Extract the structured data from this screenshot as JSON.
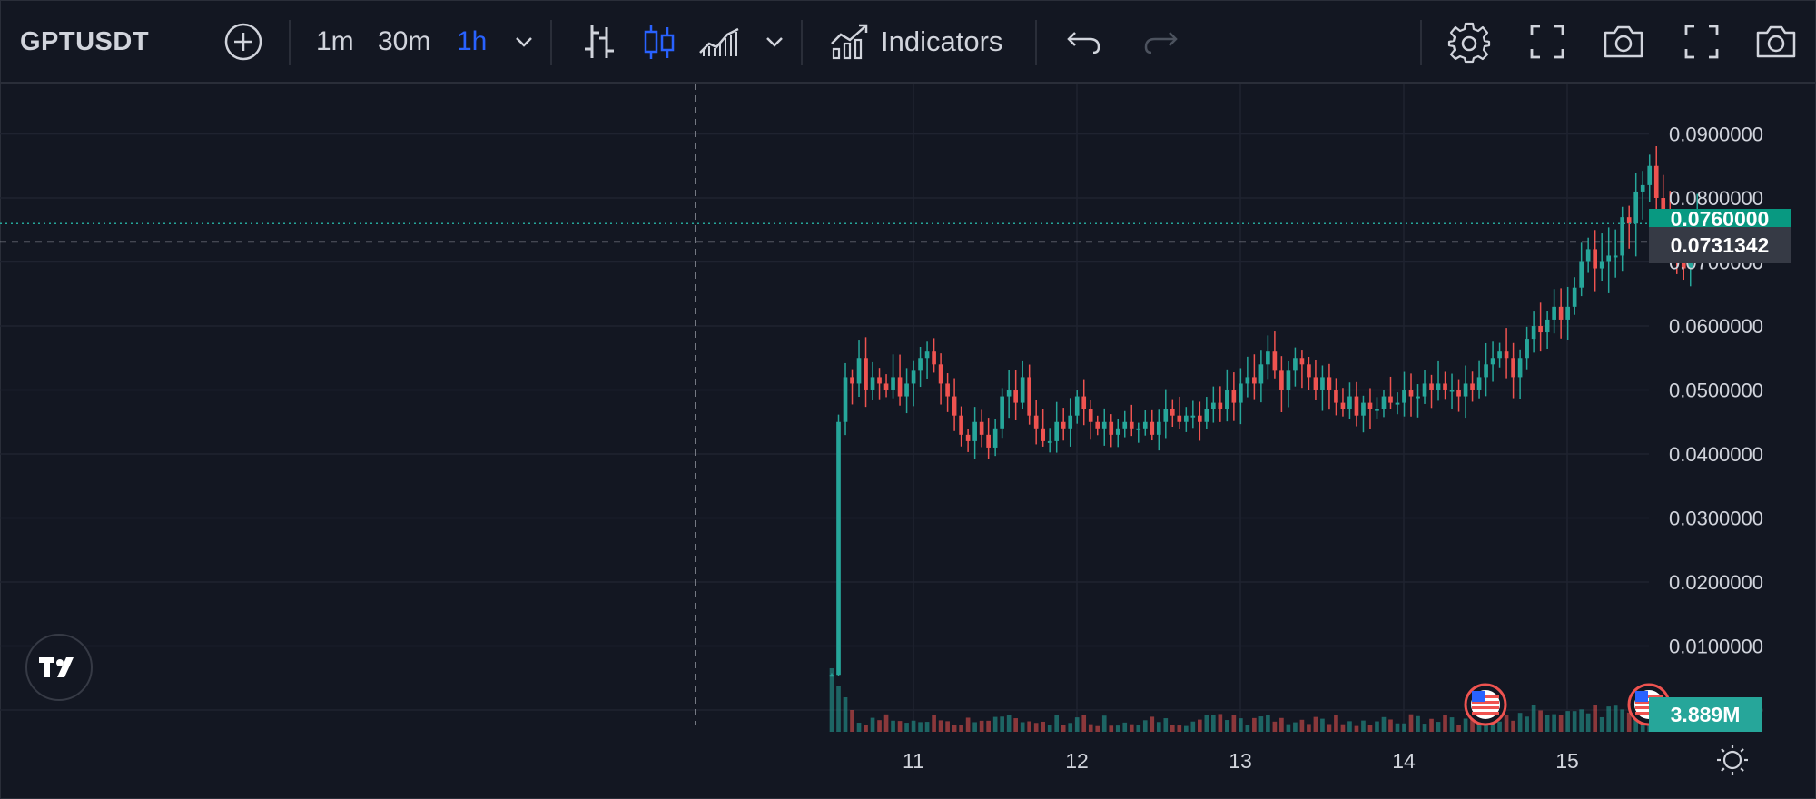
{
  "toolbar": {
    "symbol": "GPTUSDT",
    "add_icon": "plus-circle-icon",
    "intervals": [
      "1m",
      "30m",
      "1h"
    ],
    "active_interval": "1h",
    "indicators_label": "Indicators",
    "icons": [
      "chevron-down-icon",
      "bar-chart-icon",
      "candles-icon",
      "area-chart-icon",
      "chevron-down-icon",
      "indicators-icon",
      "undo-icon",
      "redo-icon",
      "gear-icon",
      "fullscreen-icon",
      "camera-icon",
      "fullscreen-icon",
      "camera-icon"
    ]
  },
  "colors": {
    "background": "#131722",
    "up": "#26a69a",
    "down": "#ef5350",
    "grid": "#1f2330",
    "crosshair": "#9598a1",
    "accent": "#2962ff"
  },
  "crosshair": {
    "price_label": "0.0731342",
    "price": 0.0731342
  },
  "last_price": {
    "label": "0.0760000",
    "price": 0.076
  },
  "volume_label": "3.889M",
  "chart_data": {
    "type": "candlestick",
    "title": "GPTUSDT",
    "interval": "1h",
    "y_axis": {
      "ticks": [
        "0.0900000",
        "0.0800000",
        "0.0700000",
        "0.0600000",
        "0.0500000",
        "0.0400000",
        "0.0300000",
        "0.0200000",
        "0.0100000",
        "0.0000000"
      ],
      "range": [
        0.0,
        0.09
      ]
    },
    "x_axis": {
      "ticks": [
        "11",
        "12",
        "13",
        "14",
        "15"
      ],
      "unit": "day",
      "range_days": [
        10.0,
        15.5
      ]
    },
    "grid": true,
    "events": [
      {
        "icon": "us-flag-icon",
        "day": 14.5
      },
      {
        "icon": "us-flag-icon",
        "day": 15.5
      }
    ],
    "series": [
      {
        "name": "GPTUSDT",
        "start_day": 10.5,
        "step_days": 0.0417,
        "close": [
          0.0055,
          0.045,
          0.052,
          0.051,
          0.055,
          0.05,
          0.052,
          0.051,
          0.05,
          0.052,
          0.049,
          0.051,
          0.053,
          0.055,
          0.056,
          0.054,
          0.051,
          0.049,
          0.046,
          0.043,
          0.042,
          0.045,
          0.043,
          0.041,
          0.044,
          0.049,
          0.05,
          0.048,
          0.052,
          0.046,
          0.044,
          0.042,
          0.042,
          0.045,
          0.044,
          0.046,
          0.049,
          0.047,
          0.045,
          0.044,
          0.045,
          0.043,
          0.044,
          0.045,
          0.044,
          0.044,
          0.045,
          0.043,
          0.045,
          0.047,
          0.046,
          0.045,
          0.046,
          0.046,
          0.045,
          0.047,
          0.048,
          0.047,
          0.05,
          0.048,
          0.051,
          0.052,
          0.051,
          0.054,
          0.056,
          0.053,
          0.05,
          0.053,
          0.055,
          0.054,
          0.052,
          0.05,
          0.052,
          0.05,
          0.048,
          0.047,
          0.049,
          0.046,
          0.048,
          0.047,
          0.047,
          0.049,
          0.048,
          0.048,
          0.05,
          0.049,
          0.049,
          0.051,
          0.05,
          0.051,
          0.05,
          0.05,
          0.049,
          0.051,
          0.05,
          0.052,
          0.054,
          0.055,
          0.056,
          0.055,
          0.052,
          0.055,
          0.058,
          0.06,
          0.059,
          0.061,
          0.063,
          0.061,
          0.063,
          0.066,
          0.07,
          0.072,
          0.069,
          0.07,
          0.071,
          0.071,
          0.077,
          0.076,
          0.081,
          0.082,
          0.085,
          0.08,
          0.076,
          0.072,
          0.07,
          0.069,
          0.073,
          0.076
        ]
      }
    ]
  }
}
